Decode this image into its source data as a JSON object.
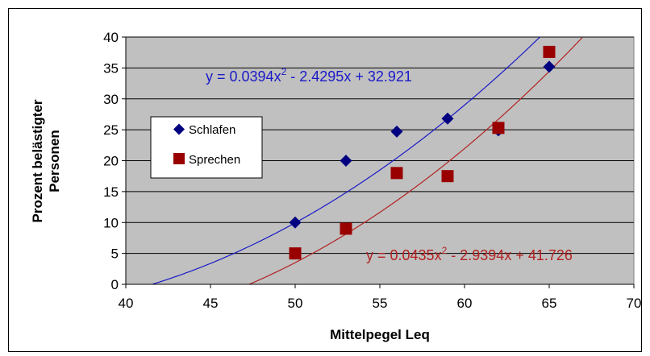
{
  "chart_data": {
    "type": "scatter",
    "xlabel": "Mittelpegel Leq",
    "ylabel_lines": [
      "Prozent belästigter",
      "Personen"
    ],
    "xlim": [
      40,
      70
    ],
    "ylim": [
      0,
      40
    ],
    "x_ticks": [
      40,
      45,
      50,
      55,
      60,
      65,
      70
    ],
    "y_ticks": [
      0,
      5,
      10,
      15,
      20,
      25,
      30,
      35,
      40
    ],
    "grid": "horizontal",
    "plot_background": "#c0c0c0",
    "legend_position": "left-center",
    "series": [
      {
        "name": "Schlafen",
        "marker": "diamond",
        "color": "#000080",
        "points": [
          [
            50,
            10
          ],
          [
            53,
            20
          ],
          [
            56,
            24.7
          ],
          [
            59,
            26.8
          ],
          [
            62,
            24.9
          ],
          [
            65,
            35.2
          ]
        ],
        "trendline": {
          "type": "poly2",
          "a": 0.0394,
          "b": -2.4295,
          "c": 32.921,
          "color": "#1a1ac8",
          "label_prefix": "y = 0.0394x",
          "label_sup": "2",
          "label_suffix": " - 2.4295x + 32.921"
        }
      },
      {
        "name": "Sprechen",
        "marker": "square",
        "color": "#990000",
        "points": [
          [
            50,
            5
          ],
          [
            53,
            9
          ],
          [
            56,
            18
          ],
          [
            59,
            17.5
          ],
          [
            62,
            25.3
          ],
          [
            65,
            37.6
          ]
        ],
        "trendline": {
          "type": "poly2",
          "a": 0.0435,
          "b": -2.9394,
          "c": 41.726,
          "color": "#b22222",
          "label_prefix": "y = 0.0435x",
          "label_sup": "2",
          "label_suffix": " - 2.9394x + 41.726"
        }
      }
    ]
  }
}
